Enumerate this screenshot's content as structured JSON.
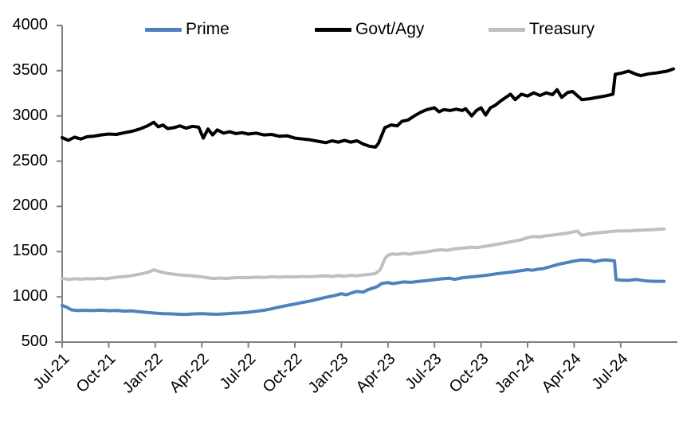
{
  "chart_data": {
    "type": "line",
    "title": "",
    "xlabel": "",
    "ylabel": "",
    "x_unit": "months since Jul-2021",
    "x_range": [
      0,
      39.4
    ],
    "ylim": [
      500,
      4000
    ],
    "grid": false,
    "legend_position": "top",
    "axis_color": "#808080",
    "x_axis": {
      "tick_labels": [
        "Jul-21",
        "Oct-21",
        "Jan-22",
        "Apr-22",
        "Jul-22",
        "Oct-22",
        "Jan-23",
        "Apr-23",
        "Jul-23",
        "Oct-23",
        "Jan-24",
        "Apr-24",
        "Jul-24"
      ],
      "tick_positions": [
        0,
        3,
        6,
        9,
        12,
        15,
        18,
        21,
        24,
        27,
        30,
        33,
        36
      ]
    },
    "y_axis": {
      "tick_labels": [
        "4000",
        "3500",
        "3000",
        "2500",
        "2000",
        "1500",
        "1000",
        "500"
      ],
      "tick_values": [
        4000,
        3500,
        3000,
        2500,
        2000,
        1500,
        1000,
        500
      ]
    },
    "series": [
      {
        "name": "Prime",
        "color": "#4F81BD",
        "stroke_width": 4,
        "points": [
          [
            0,
            905
          ],
          [
            0.3,
            885
          ],
          [
            0.6,
            856
          ],
          [
            1,
            848
          ],
          [
            1.5,
            852
          ],
          [
            2,
            848
          ],
          [
            2.5,
            853
          ],
          [
            3,
            847
          ],
          [
            3.5,
            850
          ],
          [
            4,
            842
          ],
          [
            4.5,
            845
          ],
          [
            5,
            835
          ],
          [
            5.5,
            828
          ],
          [
            6,
            820
          ],
          [
            6.5,
            815
          ],
          [
            7,
            812
          ],
          [
            7.5,
            808
          ],
          [
            8,
            806
          ],
          [
            8.5,
            812
          ],
          [
            9,
            815
          ],
          [
            9.5,
            810
          ],
          [
            10,
            808
          ],
          [
            10.5,
            812
          ],
          [
            11,
            818
          ],
          [
            11.5,
            822
          ],
          [
            12,
            830
          ],
          [
            12.5,
            840
          ],
          [
            13,
            852
          ],
          [
            13.5,
            868
          ],
          [
            14,
            888
          ],
          [
            14.5,
            905
          ],
          [
            15,
            920
          ],
          [
            15.5,
            938
          ],
          [
            16,
            955
          ],
          [
            16.5,
            975
          ],
          [
            17,
            995
          ],
          [
            17.5,
            1012
          ],
          [
            18,
            1035
          ],
          [
            18.3,
            1022
          ],
          [
            18.7,
            1045
          ],
          [
            19,
            1060
          ],
          [
            19.4,
            1052
          ],
          [
            19.7,
            1078
          ],
          [
            20,
            1095
          ],
          [
            20.3,
            1112
          ],
          [
            20.6,
            1148
          ],
          [
            21,
            1158
          ],
          [
            21.3,
            1146
          ],
          [
            21.7,
            1156
          ],
          [
            22,
            1165
          ],
          [
            22.5,
            1160
          ],
          [
            23,
            1172
          ],
          [
            23.5,
            1180
          ],
          [
            24,
            1190
          ],
          [
            24.5,
            1200
          ],
          [
            25,
            1205
          ],
          [
            25.3,
            1193
          ],
          [
            25.7,
            1208
          ],
          [
            26,
            1215
          ],
          [
            26.5,
            1222
          ],
          [
            27,
            1232
          ],
          [
            27.5,
            1242
          ],
          [
            28,
            1255
          ],
          [
            28.5,
            1265
          ],
          [
            29,
            1275
          ],
          [
            29.5,
            1288
          ],
          [
            30,
            1300
          ],
          [
            30.3,
            1294
          ],
          [
            30.7,
            1306
          ],
          [
            31,
            1312
          ],
          [
            31.5,
            1335
          ],
          [
            32,
            1360
          ],
          [
            32.5,
            1378
          ],
          [
            33,
            1395
          ],
          [
            33.5,
            1408
          ],
          [
            34,
            1404
          ],
          [
            34.3,
            1388
          ],
          [
            34.7,
            1402
          ],
          [
            35,
            1408
          ],
          [
            35.4,
            1402
          ],
          [
            35.6,
            1398
          ],
          [
            35.7,
            1190
          ],
          [
            36,
            1185
          ],
          [
            36.5,
            1182
          ],
          [
            37,
            1192
          ],
          [
            37.3,
            1184
          ],
          [
            37.7,
            1175
          ],
          [
            38.2,
            1172
          ],
          [
            38.8,
            1172
          ]
        ]
      },
      {
        "name": "Govt/Agy",
        "color": "#000000",
        "stroke_width": 4,
        "points": [
          [
            0,
            2760
          ],
          [
            0.4,
            2730
          ],
          [
            0.8,
            2765
          ],
          [
            1.2,
            2745
          ],
          [
            1.6,
            2770
          ],
          [
            2,
            2775
          ],
          [
            2.5,
            2790
          ],
          [
            3,
            2800
          ],
          [
            3.5,
            2795
          ],
          [
            4,
            2815
          ],
          [
            4.5,
            2830
          ],
          [
            5,
            2855
          ],
          [
            5.5,
            2890
          ],
          [
            5.9,
            2930
          ],
          [
            6.2,
            2880
          ],
          [
            6.5,
            2900
          ],
          [
            6.8,
            2860
          ],
          [
            7.2,
            2870
          ],
          [
            7.6,
            2890
          ],
          [
            8,
            2865
          ],
          [
            8.4,
            2885
          ],
          [
            8.8,
            2875
          ],
          [
            9.1,
            2755
          ],
          [
            9.4,
            2855
          ],
          [
            9.7,
            2790
          ],
          [
            10,
            2845
          ],
          [
            10.4,
            2810
          ],
          [
            10.8,
            2825
          ],
          [
            11.2,
            2805
          ],
          [
            11.6,
            2815
          ],
          [
            12,
            2800
          ],
          [
            12.5,
            2810
          ],
          [
            13,
            2790
          ],
          [
            13.5,
            2795
          ],
          [
            14,
            2775
          ],
          [
            14.5,
            2780
          ],
          [
            15,
            2755
          ],
          [
            15.5,
            2745
          ],
          [
            16,
            2735
          ],
          [
            16.5,
            2720
          ],
          [
            17,
            2705
          ],
          [
            17.4,
            2725
          ],
          [
            17.8,
            2710
          ],
          [
            18.2,
            2730
          ],
          [
            18.6,
            2710
          ],
          [
            19,
            2725
          ],
          [
            19.4,
            2690
          ],
          [
            19.8,
            2665
          ],
          [
            20.2,
            2655
          ],
          [
            20.4,
            2700
          ],
          [
            20.8,
            2870
          ],
          [
            21.2,
            2900
          ],
          [
            21.6,
            2890
          ],
          [
            21.9,
            2940
          ],
          [
            22.3,
            2955
          ],
          [
            22.7,
            3000
          ],
          [
            23.1,
            3040
          ],
          [
            23.5,
            3070
          ],
          [
            24,
            3090
          ],
          [
            24.3,
            3045
          ],
          [
            24.6,
            3070
          ],
          [
            25,
            3060
          ],
          [
            25.4,
            3075
          ],
          [
            25.8,
            3060
          ],
          [
            26,
            3080
          ],
          [
            26.4,
            3000
          ],
          [
            26.7,
            3060
          ],
          [
            27,
            3090
          ],
          [
            27.3,
            3010
          ],
          [
            27.6,
            3090
          ],
          [
            27.9,
            3115
          ],
          [
            28.3,
            3170
          ],
          [
            28.9,
            3240
          ],
          [
            29.2,
            3180
          ],
          [
            29.6,
            3240
          ],
          [
            30,
            3220
          ],
          [
            30.4,
            3255
          ],
          [
            30.8,
            3225
          ],
          [
            31.2,
            3255
          ],
          [
            31.6,
            3235
          ],
          [
            31.9,
            3290
          ],
          [
            32.2,
            3205
          ],
          [
            32.6,
            3260
          ],
          [
            32.9,
            3270
          ],
          [
            33.5,
            3180
          ],
          [
            34,
            3190
          ],
          [
            34.5,
            3205
          ],
          [
            35,
            3220
          ],
          [
            35.5,
            3240
          ],
          [
            35.65,
            3460
          ],
          [
            36.1,
            3475
          ],
          [
            36.5,
            3495
          ],
          [
            37,
            3460
          ],
          [
            37.3,
            3445
          ],
          [
            37.8,
            3465
          ],
          [
            38.3,
            3475
          ],
          [
            39,
            3495
          ],
          [
            39.4,
            3520
          ]
        ]
      },
      {
        "name": "Treasury",
        "color": "#BFBFBF",
        "stroke_width": 4,
        "points": [
          [
            0,
            1205
          ],
          [
            0.4,
            1193
          ],
          [
            0.8,
            1200
          ],
          [
            1.2,
            1195
          ],
          [
            1.6,
            1202
          ],
          [
            2,
            1198
          ],
          [
            2.4,
            1205
          ],
          [
            2.8,
            1200
          ],
          [
            3.2,
            1210
          ],
          [
            3.6,
            1218
          ],
          [
            4,
            1225
          ],
          [
            4.4,
            1232
          ],
          [
            4.8,
            1245
          ],
          [
            5.2,
            1258
          ],
          [
            5.6,
            1275
          ],
          [
            5.9,
            1300
          ],
          [
            6.3,
            1278
          ],
          [
            6.7,
            1262
          ],
          [
            7,
            1255
          ],
          [
            7.4,
            1245
          ],
          [
            7.8,
            1240
          ],
          [
            8.2,
            1235
          ],
          [
            8.6,
            1228
          ],
          [
            9,
            1222
          ],
          [
            9.4,
            1210
          ],
          [
            9.8,
            1203
          ],
          [
            10.2,
            1208
          ],
          [
            10.6,
            1203
          ],
          [
            11,
            1210
          ],
          [
            11.5,
            1215
          ],
          [
            12,
            1212
          ],
          [
            12.5,
            1218
          ],
          [
            13,
            1215
          ],
          [
            13.5,
            1222
          ],
          [
            14,
            1218
          ],
          [
            14.5,
            1222
          ],
          [
            15,
            1220
          ],
          [
            15.5,
            1225
          ],
          [
            16,
            1222
          ],
          [
            16.5,
            1228
          ],
          [
            17,
            1232
          ],
          [
            17.4,
            1225
          ],
          [
            17.8,
            1235
          ],
          [
            18.2,
            1228
          ],
          [
            18.6,
            1238
          ],
          [
            19,
            1232
          ],
          [
            19.4,
            1242
          ],
          [
            19.8,
            1248
          ],
          [
            20.2,
            1258
          ],
          [
            20.5,
            1300
          ],
          [
            20.8,
            1420
          ],
          [
            21,
            1460
          ],
          [
            21.3,
            1475
          ],
          [
            21.6,
            1470
          ],
          [
            22,
            1480
          ],
          [
            22.4,
            1472
          ],
          [
            22.8,
            1485
          ],
          [
            23.2,
            1492
          ],
          [
            23.6,
            1500
          ],
          [
            24,
            1512
          ],
          [
            24.4,
            1520
          ],
          [
            24.8,
            1515
          ],
          [
            25.2,
            1528
          ],
          [
            25.6,
            1535
          ],
          [
            26,
            1542
          ],
          [
            26.4,
            1550
          ],
          [
            26.8,
            1545
          ],
          [
            27.2,
            1558
          ],
          [
            27.6,
            1568
          ],
          [
            28,
            1580
          ],
          [
            28.4,
            1592
          ],
          [
            28.8,
            1605
          ],
          [
            29.2,
            1618
          ],
          [
            29.6,
            1632
          ],
          [
            30,
            1655
          ],
          [
            30.4,
            1668
          ],
          [
            30.8,
            1662
          ],
          [
            31.2,
            1675
          ],
          [
            31.6,
            1682
          ],
          [
            32,
            1692
          ],
          [
            32.4,
            1700
          ],
          [
            32.8,
            1712
          ],
          [
            33.2,
            1728
          ],
          [
            33.5,
            1680
          ],
          [
            33.9,
            1695
          ],
          [
            34.3,
            1705
          ],
          [
            34.7,
            1710
          ],
          [
            35.1,
            1718
          ],
          [
            35.5,
            1725
          ],
          [
            36,
            1730
          ],
          [
            36.5,
            1728
          ],
          [
            37,
            1735
          ],
          [
            37.5,
            1738
          ],
          [
            38,
            1742
          ],
          [
            38.8,
            1750
          ]
        ]
      }
    ]
  }
}
